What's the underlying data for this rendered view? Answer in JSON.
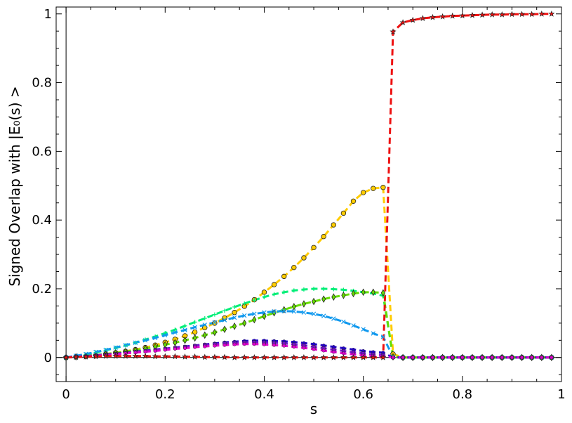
{
  "chart_data": {
    "type": "line",
    "title": "",
    "xlabel": "s",
    "ylabel": "Signed Overlap with |E₀(s) >",
    "xlim": [
      -0.02,
      1.0
    ],
    "ylim": [
      -0.07,
      1.02
    ],
    "xticks": [
      0,
      0.2,
      0.4,
      0.6,
      0.8,
      1
    ],
    "xtick_labels": [
      "0",
      "0.2",
      "0.4",
      "0.6",
      "0.8",
      "1"
    ],
    "yticks": [
      0,
      0.2,
      0.4,
      0.6,
      0.8,
      1
    ],
    "ytick_labels": [
      "0",
      "0.2",
      "0.4",
      "0.6",
      "0.8",
      "1"
    ],
    "grid": false,
    "legend": "none",
    "series": [
      {
        "color": "#ffcc00",
        "marker": "circle",
        "x": [
          0,
          0.02,
          0.04,
          0.06,
          0.08,
          0.1,
          0.12,
          0.14,
          0.16,
          0.18,
          0.2,
          0.22,
          0.24,
          0.26,
          0.28,
          0.3,
          0.32,
          0.34,
          0.36,
          0.38,
          0.4,
          0.42,
          0.44,
          0.46,
          0.48,
          0.5,
          0.52,
          0.54,
          0.56,
          0.58,
          0.6,
          0.62,
          0.64,
          0.66,
          0.68,
          0.7,
          0.72,
          0.74,
          0.76,
          0.78,
          0.8,
          0.82,
          0.84,
          0.86,
          0.88,
          0.9,
          0.92,
          0.94,
          0.96,
          0.98
        ],
        "y": [
          0.0,
          0.002,
          0.004,
          0.007,
          0.01,
          0.014,
          0.018,
          0.023,
          0.029,
          0.036,
          0.044,
          0.053,
          0.063,
          0.074,
          0.087,
          0.1,
          0.115,
          0.131,
          0.149,
          0.168,
          0.19,
          0.212,
          0.236,
          0.262,
          0.29,
          0.32,
          0.352,
          0.386,
          0.42,
          0.455,
          0.48,
          0.492,
          0.495,
          0.01,
          0.0,
          0.0,
          0.0,
          0.0,
          0.0,
          0.0,
          0.0,
          0.0,
          0.0,
          0.0,
          0.0,
          0.0,
          0.0,
          0.0,
          0.0,
          0.0
        ]
      },
      {
        "color": "#00ee77",
        "marker": "plus",
        "x": [
          0,
          0.02,
          0.04,
          0.06,
          0.08,
          0.1,
          0.12,
          0.14,
          0.16,
          0.18,
          0.2,
          0.22,
          0.24,
          0.26,
          0.28,
          0.3,
          0.32,
          0.34,
          0.36,
          0.38,
          0.4,
          0.42,
          0.44,
          0.46,
          0.48,
          0.5,
          0.52,
          0.54,
          0.56,
          0.58,
          0.6,
          0.62,
          0.64,
          0.66,
          0.68,
          0.7,
          0.72,
          0.74,
          0.76,
          0.78,
          0.8,
          0.82,
          0.84,
          0.86,
          0.88,
          0.9,
          0.92,
          0.94,
          0.96,
          0.98
        ],
        "y": [
          0.0,
          0.004,
          0.009,
          0.015,
          0.021,
          0.028,
          0.035,
          0.043,
          0.052,
          0.061,
          0.071,
          0.081,
          0.092,
          0.103,
          0.114,
          0.125,
          0.136,
          0.147,
          0.157,
          0.167,
          0.176,
          0.184,
          0.19,
          0.195,
          0.198,
          0.2,
          0.2,
          0.199,
          0.197,
          0.194,
          0.19,
          0.186,
          0.18,
          0.002,
          0.0,
          0.0,
          0.0,
          0.0,
          0.0,
          0.0,
          0.0,
          0.0,
          0.0,
          0.0,
          0.0,
          0.0,
          0.0,
          0.0,
          0.0,
          0.0
        ]
      },
      {
        "color": "#66dd00",
        "marker": "diamond",
        "x": [
          0,
          0.02,
          0.04,
          0.06,
          0.08,
          0.1,
          0.12,
          0.14,
          0.16,
          0.18,
          0.2,
          0.22,
          0.24,
          0.26,
          0.28,
          0.3,
          0.32,
          0.34,
          0.36,
          0.38,
          0.4,
          0.42,
          0.44,
          0.46,
          0.48,
          0.5,
          0.52,
          0.54,
          0.56,
          0.58,
          0.6,
          0.62,
          0.64,
          0.66,
          0.68,
          0.7,
          0.72,
          0.74,
          0.76,
          0.78,
          0.8,
          0.82,
          0.84,
          0.86,
          0.88,
          0.9,
          0.92,
          0.94,
          0.96,
          0.98
        ],
        "y": [
          0.0,
          0.002,
          0.004,
          0.007,
          0.01,
          0.013,
          0.017,
          0.021,
          0.026,
          0.031,
          0.037,
          0.043,
          0.05,
          0.057,
          0.065,
          0.073,
          0.082,
          0.091,
          0.1,
          0.11,
          0.12,
          0.13,
          0.139,
          0.148,
          0.156,
          0.163,
          0.17,
          0.176,
          0.181,
          0.186,
          0.19,
          0.19,
          0.188,
          0.002,
          0.0,
          0.0,
          0.0,
          0.0,
          0.0,
          0.0,
          0.0,
          0.0,
          0.0,
          0.0,
          0.0,
          0.0,
          0.0,
          0.0,
          0.0,
          0.0
        ]
      },
      {
        "color": "#1199ee",
        "marker": "x",
        "x": [
          0,
          0.02,
          0.04,
          0.06,
          0.08,
          0.1,
          0.12,
          0.14,
          0.16,
          0.18,
          0.2,
          0.22,
          0.24,
          0.26,
          0.28,
          0.3,
          0.32,
          0.34,
          0.36,
          0.38,
          0.4,
          0.42,
          0.44,
          0.46,
          0.48,
          0.5,
          0.52,
          0.54,
          0.56,
          0.58,
          0.6,
          0.62,
          0.64,
          0.66,
          0.68,
          0.7,
          0.72,
          0.74,
          0.76,
          0.78,
          0.8,
          0.82,
          0.84,
          0.86,
          0.88,
          0.9,
          0.92,
          0.94,
          0.96,
          0.98
        ],
        "y": [
          0.0,
          0.005,
          0.01,
          0.016,
          0.022,
          0.029,
          0.036,
          0.043,
          0.05,
          0.057,
          0.065,
          0.073,
          0.08,
          0.088,
          0.095,
          0.102,
          0.109,
          0.116,
          0.122,
          0.127,
          0.131,
          0.134,
          0.135,
          0.134,
          0.131,
          0.127,
          0.121,
          0.113,
          0.104,
          0.093,
          0.082,
          0.07,
          0.06,
          0.002,
          0.0,
          0.0,
          0.0,
          0.0,
          0.0,
          0.0,
          0.0,
          0.0,
          0.0,
          0.0,
          0.0,
          0.0,
          0.0,
          0.0,
          0.0,
          0.0
        ]
      },
      {
        "color": "#2200cc",
        "marker": "dot",
        "x": [
          0,
          0.02,
          0.04,
          0.06,
          0.08,
          0.1,
          0.12,
          0.14,
          0.16,
          0.18,
          0.2,
          0.22,
          0.24,
          0.26,
          0.28,
          0.3,
          0.32,
          0.34,
          0.36,
          0.38,
          0.4,
          0.42,
          0.44,
          0.46,
          0.48,
          0.5,
          0.52,
          0.54,
          0.56,
          0.58,
          0.6,
          0.62,
          0.64,
          0.66,
          0.68,
          0.7,
          0.72,
          0.74,
          0.76,
          0.78,
          0.8,
          0.82,
          0.84,
          0.86,
          0.88,
          0.9,
          0.92,
          0.94,
          0.96,
          0.98
        ],
        "y": [
          0.0,
          0.002,
          0.004,
          0.006,
          0.009,
          0.011,
          0.014,
          0.017,
          0.02,
          0.023,
          0.026,
          0.029,
          0.032,
          0.035,
          0.038,
          0.041,
          0.044,
          0.046,
          0.048,
          0.049,
          0.049,
          0.048,
          0.047,
          0.045,
          0.042,
          0.039,
          0.035,
          0.031,
          0.027,
          0.023,
          0.019,
          0.016,
          0.014,
          0.0,
          0.0,
          0.0,
          0.0,
          0.0,
          0.0,
          0.0,
          0.0,
          0.0,
          0.0,
          0.0,
          0.0,
          0.0,
          0.0,
          0.0,
          0.0,
          0.0
        ]
      },
      {
        "color": "#7711cc",
        "marker": "square",
        "x": [
          0,
          0.02,
          0.04,
          0.06,
          0.08,
          0.1,
          0.12,
          0.14,
          0.16,
          0.18,
          0.2,
          0.22,
          0.24,
          0.26,
          0.28,
          0.3,
          0.32,
          0.34,
          0.36,
          0.38,
          0.4,
          0.42,
          0.44,
          0.46,
          0.48,
          0.5,
          0.52,
          0.54,
          0.56,
          0.58,
          0.6,
          0.62,
          0.64,
          0.66,
          0.68,
          0.7,
          0.72,
          0.74,
          0.76,
          0.78,
          0.8,
          0.82,
          0.84,
          0.86,
          0.88,
          0.9,
          0.92,
          0.94,
          0.96,
          0.98
        ],
        "y": [
          0.0,
          0.002,
          0.003,
          0.005,
          0.008,
          0.01,
          0.013,
          0.016,
          0.019,
          0.022,
          0.025,
          0.028,
          0.031,
          0.034,
          0.037,
          0.039,
          0.041,
          0.043,
          0.044,
          0.045,
          0.044,
          0.043,
          0.041,
          0.038,
          0.035,
          0.031,
          0.027,
          0.023,
          0.019,
          0.015,
          0.012,
          0.009,
          0.007,
          0.0,
          0.0,
          0.0,
          0.0,
          0.0,
          0.0,
          0.0,
          0.0,
          0.0,
          0.0,
          0.0,
          0.0,
          0.0,
          0.0,
          0.0,
          0.0,
          0.0
        ]
      },
      {
        "color": "#dd00cc",
        "marker": "dot",
        "x": [
          0,
          0.02,
          0.04,
          0.06,
          0.08,
          0.1,
          0.12,
          0.14,
          0.16,
          0.18,
          0.2,
          0.22,
          0.24,
          0.26,
          0.28,
          0.3,
          0.32,
          0.34,
          0.36,
          0.38,
          0.4,
          0.42,
          0.44,
          0.46,
          0.48,
          0.5,
          0.52,
          0.54,
          0.56,
          0.58,
          0.6,
          0.62,
          0.64,
          0.66,
          0.68,
          0.7,
          0.72,
          0.74,
          0.76,
          0.78,
          0.8,
          0.82,
          0.84,
          0.86,
          0.88,
          0.9,
          0.92,
          0.94,
          0.96,
          0.98
        ],
        "y": [
          0.0,
          0.002,
          0.003,
          0.005,
          0.007,
          0.009,
          0.012,
          0.014,
          0.017,
          0.019,
          0.022,
          0.025,
          0.027,
          0.03,
          0.032,
          0.034,
          0.036,
          0.038,
          0.039,
          0.039,
          0.038,
          0.036,
          0.034,
          0.031,
          0.028,
          0.024,
          0.02,
          0.016,
          0.012,
          0.009,
          0.006,
          0.004,
          0.003,
          0.0,
          0.0,
          0.0,
          0.0,
          0.0,
          0.0,
          0.0,
          0.0,
          0.0,
          0.0,
          0.0,
          0.0,
          0.0,
          0.0,
          0.0,
          0.0,
          0.0
        ]
      },
      {
        "color": "#ee1111",
        "marker": "star",
        "x": [
          0,
          0.02,
          0.04,
          0.06,
          0.08,
          0.1,
          0.12,
          0.14,
          0.16,
          0.18,
          0.2,
          0.22,
          0.24,
          0.26,
          0.28,
          0.3,
          0.32,
          0.34,
          0.36,
          0.38,
          0.4,
          0.42,
          0.44,
          0.46,
          0.48,
          0.5,
          0.52,
          0.54,
          0.56,
          0.58,
          0.6,
          0.62,
          0.64,
          0.66,
          0.68,
          0.7,
          0.72,
          0.74,
          0.76,
          0.78,
          0.8,
          0.82,
          0.84,
          0.86,
          0.88,
          0.9,
          0.92,
          0.94,
          0.96,
          0.98
        ],
        "y": [
          0.0,
          0.001,
          0.002,
          0.003,
          0.004,
          0.004,
          0.004,
          0.004,
          0.004,
          0.003,
          0.003,
          0.003,
          0.002,
          0.002,
          0.001,
          0.001,
          0.001,
          0.0,
          0.0,
          0.0,
          0.0,
          0.0,
          0.0,
          0.0,
          0.0,
          0.0,
          0.0,
          0.0,
          0.0,
          0.0,
          0.0,
          0.0,
          0.0,
          0.948,
          0.975,
          0.982,
          0.987,
          0.99,
          0.992,
          0.994,
          0.995,
          0.996,
          0.997,
          0.998,
          0.998,
          0.999,
          0.999,
          0.999,
          1.0,
          1.0
        ]
      }
    ]
  }
}
